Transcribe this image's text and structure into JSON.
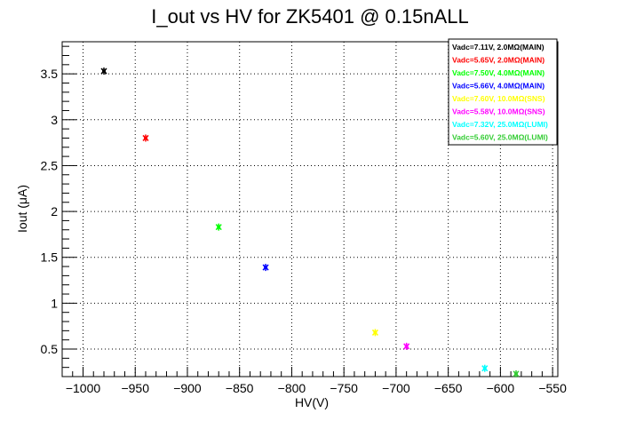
{
  "chart_data": {
    "type": "scatter",
    "title": "I_out vs HV for ZK5401 @ 0.15nALL",
    "xlabel": "HV(V)",
    "ylabel": "Iout (μA)",
    "xlim": [
      -1020,
      -545
    ],
    "ylim": [
      0.2,
      3.85
    ],
    "x_ticks": [
      -1000,
      -950,
      -900,
      -850,
      -800,
      -750,
      -700,
      -650,
      -600,
      -550
    ],
    "x_tick_labels": [
      "−1000",
      "−950",
      "−900",
      "−850",
      "−800",
      "−750",
      "−700",
      "−650",
      "−600",
      "−550"
    ],
    "y_ticks": [
      0.5,
      1,
      1.5,
      2,
      2.5,
      3,
      3.5
    ],
    "y_tick_labels": [
      "0.5",
      "1",
      "1.5",
      "2",
      "2.5",
      "3",
      "3.5"
    ],
    "grid": true,
    "legend_position": "top-right",
    "series": [
      {
        "name": "Vadc=7.11V, 2.0MΩ(MAIN)",
        "color": "#000000",
        "x": [
          -980
        ],
        "y": [
          3.53
        ]
      },
      {
        "name": "Vadc=5.65V, 2.0MΩ(MAIN)",
        "color": "#ff0000",
        "x": [
          -940
        ],
        "y": [
          2.8
        ]
      },
      {
        "name": "Vadc=7.50V, 4.0MΩ(MAIN)",
        "color": "#00ff00",
        "x": [
          -870
        ],
        "y": [
          1.83
        ]
      },
      {
        "name": "Vadc=5.66V, 4.0MΩ(MAIN)",
        "color": "#0000ff",
        "x": [
          -825
        ],
        "y": [
          1.39
        ]
      },
      {
        "name": "Vadc=7.60V, 10.0MΩ(SNS)",
        "color": "#ffff00",
        "x": [
          -720
        ],
        "y": [
          0.68
        ]
      },
      {
        "name": "Vadc=5.58V, 10.0MΩ(SNS)",
        "color": "#ff00ff",
        "x": [
          -690
        ],
        "y": [
          0.53
        ]
      },
      {
        "name": "Vadc=7.32V, 25.0MΩ(LUMI)",
        "color": "#00ffff",
        "x": [
          -615
        ],
        "y": [
          0.29
        ]
      },
      {
        "name": "Vadc=5.60V, 25.0MΩ(LUMI)",
        "color": "#33cc33",
        "x": [
          -585
        ],
        "y": [
          0.23
        ]
      }
    ]
  }
}
